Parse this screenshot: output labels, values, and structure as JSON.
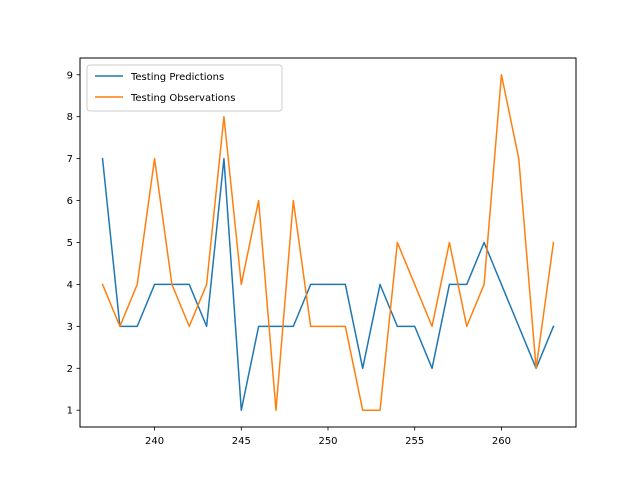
{
  "chart_data": {
    "type": "line",
    "title": "",
    "xlabel": "",
    "ylabel": "",
    "xlim": [
      235.7,
      264.3
    ],
    "ylim": [
      0.6,
      9.4
    ],
    "xticks": [
      240,
      245,
      250,
      255,
      260
    ],
    "yticks": [
      1,
      2,
      3,
      4,
      5,
      6,
      7,
      8,
      9
    ],
    "grid": false,
    "legend_position": "top-left",
    "x": [
      237,
      238,
      239,
      240,
      241,
      242,
      243,
      244,
      245,
      246,
      247,
      248,
      249,
      250,
      251,
      252,
      253,
      254,
      255,
      256,
      257,
      258,
      259,
      260,
      261,
      262,
      263
    ],
    "series": [
      {
        "name": "Testing Predictions",
        "color": "#1f77b4",
        "values": [
          7,
          3,
          3,
          4,
          4,
          4,
          3,
          7,
          1,
          3,
          3,
          3,
          4,
          4,
          4,
          2,
          4,
          3,
          3,
          2,
          4,
          4,
          5,
          4,
          3,
          2,
          3
        ]
      },
      {
        "name": "Testing Observations",
        "color": "#ff7f0e",
        "values": [
          4,
          3,
          4,
          7,
          4,
          3,
          4,
          8,
          4,
          6,
          1,
          6,
          3,
          3,
          3,
          1,
          1,
          5,
          4,
          3,
          5,
          3,
          4,
          9,
          7,
          2,
          5
        ]
      }
    ]
  }
}
